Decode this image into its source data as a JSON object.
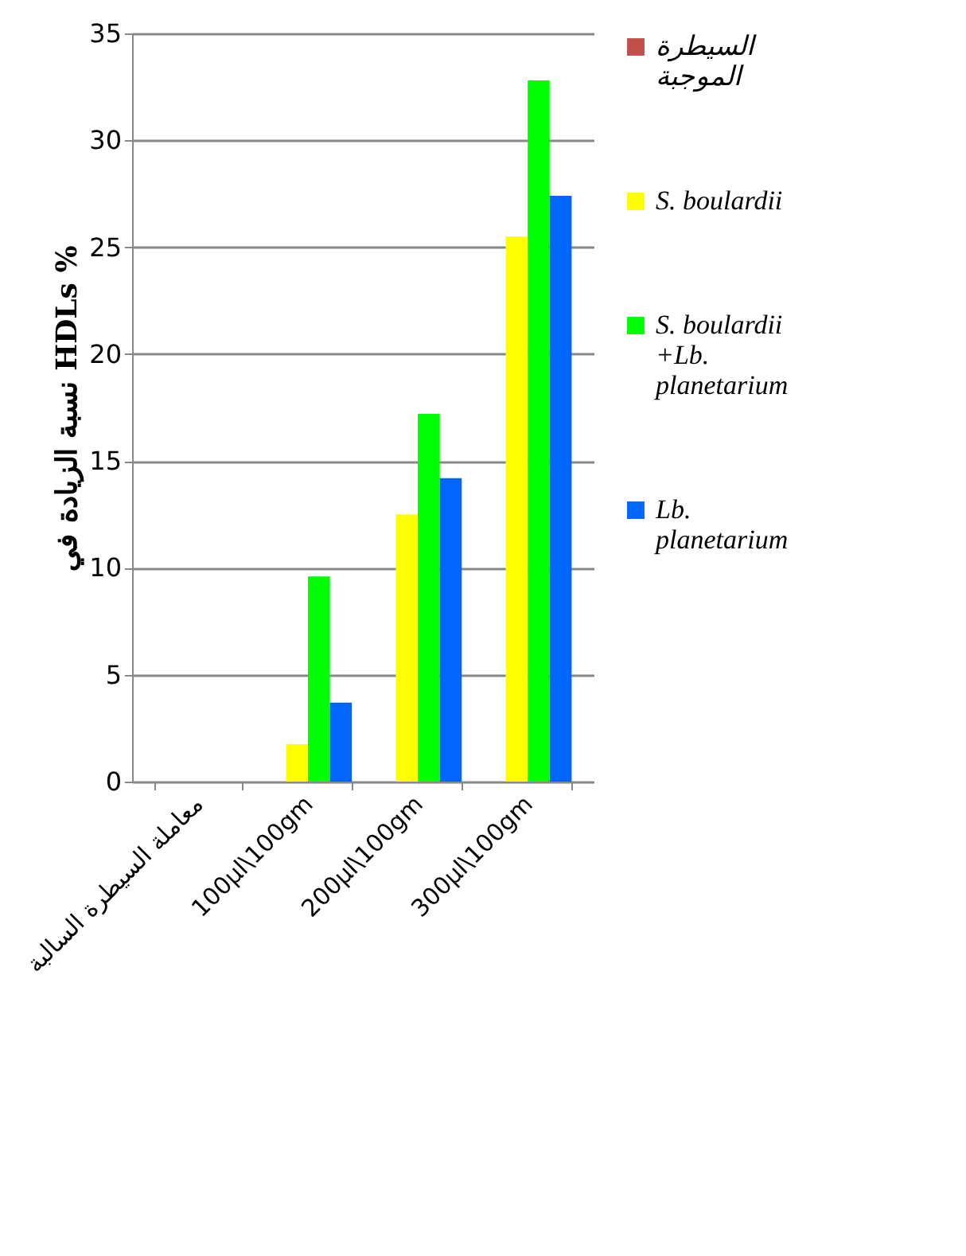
{
  "chart_data": {
    "type": "bar",
    "ylabel": "نسبة الزيادة في HDLs %",
    "categories": [
      "معاملة السيطرة السالبة",
      "100µl\\100gm",
      "200µl\\100gm",
      "300µl\\100gm"
    ],
    "series": [
      {
        "name": "السيطرة الموجبة",
        "color": "#c0504d",
        "values": [
          null,
          0,
          0,
          0
        ]
      },
      {
        "name": "S. boulardii",
        "color": "#ffff00",
        "values": [
          null,
          1.75,
          12.5,
          25.5
        ]
      },
      {
        "name": "S. boulardii +Lb. planetarium",
        "color": "#00ff00",
        "values": [
          null,
          9.6,
          17.2,
          32.8
        ]
      },
      {
        "name": "Lb. planetarium",
        "color": "#0066ff",
        "values": [
          0,
          3.7,
          14.2,
          27.4
        ]
      }
    ],
    "ylim": [
      0,
      35
    ],
    "yticks": [
      0,
      5,
      10,
      15,
      20,
      25,
      30,
      35
    ],
    "grid": "y",
    "legend": "right"
  }
}
